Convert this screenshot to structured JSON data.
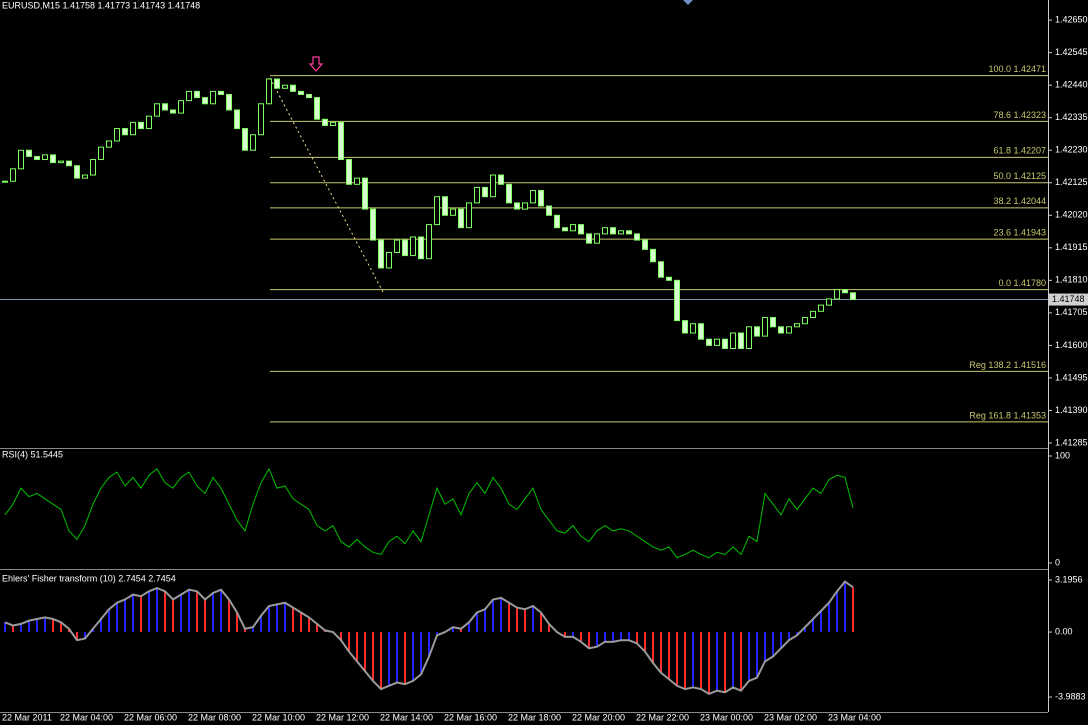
{
  "header": "EURUSD,M15  1.41758 1.41773 1.41743 1.41748",
  "chart_data": [
    {
      "type": "candlestick",
      "values": [
        1.4213,
        1.4217,
        1.4223,
        1.4221,
        1.422,
        1.42215,
        1.4219,
        1.42195,
        1.4218,
        1.4214,
        1.4215,
        1.422,
        1.4224,
        1.4226,
        1.423,
        1.4228,
        1.4232,
        1.423,
        1.4234,
        1.4238,
        1.4236,
        1.4235,
        1.4239,
        1.4242,
        1.424,
        1.4238,
        1.4242,
        1.4241,
        1.4236,
        1.423,
        1.4223,
        1.4228,
        1.4238,
        1.4246,
        1.4243,
        1.4244,
        1.4242,
        1.4241,
        1.424,
        1.4233,
        1.4231,
        1.4232,
        1.422,
        1.4212,
        1.4214,
        1.4204,
        1.4194,
        1.4185,
        1.419,
        1.4194,
        1.4189,
        1.4195,
        1.4188,
        1.4199,
        1.4208,
        1.4202,
        1.4204,
        1.4198,
        1.4206,
        1.4211,
        1.4208,
        1.4215,
        1.4212,
        1.4206,
        1.4204,
        1.4206,
        1.421,
        1.4205,
        1.4202,
        1.4198,
        1.4197,
        1.4199,
        1.4196,
        1.4193,
        1.4196,
        1.4198,
        1.4196,
        1.4197,
        1.4196,
        1.4194,
        1.4191,
        1.4187,
        1.4182,
        1.4181,
        1.4168,
        1.4164,
        1.4167,
        1.4162,
        1.416,
        1.4162,
        1.4159,
        1.4164,
        1.4159,
        1.4166,
        1.4163,
        1.4169,
        1.4166,
        1.4164,
        1.4166,
        1.4167,
        1.4169,
        1.4171,
        1.4173,
        1.4175,
        1.4178,
        1.4177,
        1.41748
      ],
      "ylim": [
        1.41272,
        1.42715
      ],
      "yticks": [
        {
          "value": 1.4265,
          "label": "1.42650"
        },
        {
          "value": 1.42545,
          "label": "1.42545"
        },
        {
          "value": 1.4244,
          "label": "1.42440"
        },
        {
          "value": 1.42335,
          "label": "1.42335"
        },
        {
          "value": 1.4223,
          "label": "1.42230"
        },
        {
          "value": 1.42125,
          "label": "1.42125"
        },
        {
          "value": 1.4202,
          "label": "1.42020"
        },
        {
          "value": 1.41915,
          "label": "1.41915"
        },
        {
          "value": 1.4181,
          "label": "1.41810"
        },
        {
          "value": 1.41705,
          "label": "1.41705"
        },
        {
          "value": 1.416,
          "label": "1.41600"
        },
        {
          "value": 1.41495,
          "label": "1.41495"
        },
        {
          "value": 1.4139,
          "label": "1.41390"
        },
        {
          "value": 1.41285,
          "label": "1.41285"
        }
      ],
      "current_price": 1.41748,
      "fib_levels": [
        {
          "label": "100.0 1.42471",
          "value": 1.42471
        },
        {
          "label": "78.6 1.42323",
          "value": 1.42323
        },
        {
          "label": "61.8 1.42207",
          "value": 1.42207
        },
        {
          "label": "50.0 1.42125",
          "value": 1.42125
        },
        {
          "label": "38.2 1.42044",
          "value": 1.42044
        },
        {
          "label": "23.6 1.41943",
          "value": 1.41943
        },
        {
          "label": "0.0 1.41780",
          "value": 1.4178
        },
        {
          "label": "Reg 138.2 1.41516",
          "value": 1.41516
        },
        {
          "label": "Reg 161.8 1.41353",
          "value": 1.41353
        }
      ],
      "bull_color": "#000000",
      "bear_color": "#d8ffd0",
      "edge_color": "#80ff60",
      "fib_color": "#c8c870"
    },
    {
      "type": "line",
      "title": "RSI(4) 51.5445",
      "values": [
        45,
        55,
        70,
        62,
        65,
        60,
        55,
        50,
        30,
        22,
        35,
        55,
        70,
        80,
        85,
        72,
        80,
        70,
        82,
        88,
        75,
        70,
        80,
        85,
        72,
        65,
        80,
        70,
        55,
        40,
        30,
        55,
        75,
        88,
        70,
        72,
        60,
        55,
        50,
        35,
        30,
        35,
        20,
        15,
        22,
        15,
        10,
        8,
        20,
        25,
        18,
        30,
        20,
        45,
        70,
        55,
        60,
        45,
        65,
        75,
        65,
        80,
        70,
        55,
        50,
        60,
        70,
        50,
        40,
        30,
        28,
        35,
        25,
        20,
        30,
        35,
        30,
        32,
        30,
        25,
        20,
        15,
        12,
        15,
        5,
        8,
        12,
        8,
        5,
        10,
        8,
        15,
        8,
        25,
        20,
        65,
        55,
        45,
        60,
        50,
        60,
        70,
        65,
        78,
        82,
        80,
        51.5445
      ],
      "ylim": [
        0,
        100
      ],
      "yticks": [
        100,
        0
      ],
      "color": "#00c000"
    },
    {
      "type": "histogram",
      "title": "Ehlers' Fisher transform (10) 2.7454 2.7454",
      "values": [
        0.6,
        0.4,
        0.5,
        0.7,
        0.8,
        0.9,
        0.8,
        0.6,
        0.2,
        -0.5,
        -0.4,
        0.2,
        0.8,
        1.4,
        1.8,
        2.0,
        2.3,
        2.2,
        2.5,
        2.7,
        2.5,
        2.0,
        2.3,
        2.6,
        2.5,
        2.0,
        2.4,
        2.6,
        2.0,
        1.2,
        0.2,
        0.3,
        1.0,
        1.6,
        1.7,
        1.8,
        1.5,
        1.2,
        0.9,
        0.5,
        0.1,
        0.0,
        -0.5,
        -1.2,
        -1.8,
        -2.4,
        -3.0,
        -3.5,
        -3.3,
        -3.1,
        -3.2,
        -3.0,
        -2.6,
        -1.5,
        -0.2,
        0.0,
        0.3,
        0.2,
        0.6,
        1.2,
        1.4,
        2.0,
        2.1,
        1.8,
        1.5,
        1.4,
        1.6,
        1.2,
        0.5,
        0.0,
        -0.3,
        -0.3,
        -0.6,
        -1.0,
        -0.9,
        -0.6,
        -0.6,
        -0.5,
        -0.5,
        -0.7,
        -1.2,
        -1.9,
        -2.5,
        -2.9,
        -3.3,
        -3.5,
        -3.4,
        -3.5,
        -3.8,
        -3.6,
        -3.7,
        -3.4,
        -3.6,
        -3.0,
        -2.8,
        -1.8,
        -1.5,
        -1.0,
        -0.5,
        -0.2,
        0.3,
        0.8,
        1.3,
        1.8,
        2.5,
        3.1,
        2.7454
      ],
      "ylim": [
        -3.9883,
        3.1956
      ],
      "yticks": [
        3.1956,
        {
          "value": 0,
          "label": "0.00"
        },
        -3.9883
      ],
      "up_color": "#2424ff",
      "down_color": "#ff2a2a",
      "line_color": "#9a9a9a"
    }
  ],
  "time_labels": [
    "22 Mar 2011",
    "22 Mar 04:00",
    "22 Mar 06:00",
    "22 Mar 08:00",
    "22 Mar 10:00",
    "22 Mar 12:00",
    "22 Mar 14:00",
    "22 Mar 16:00",
    "22 Mar 18:00",
    "22 Mar 20:00",
    "22 Mar 22:00",
    "23 Mar 00:00",
    "23 Mar 02:00",
    "23 Mar 04:00"
  ]
}
